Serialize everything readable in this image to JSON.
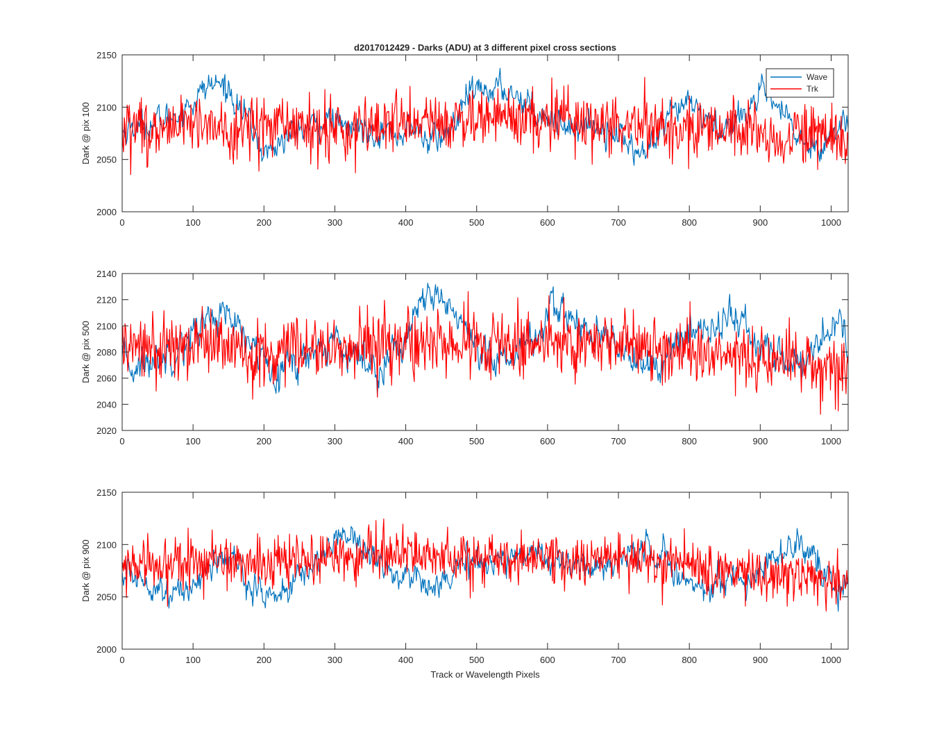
{
  "figure": {
    "title": "d2017012429 - Darks (ADU) at 3 different pixel cross sections",
    "xlabel": "Track or Wavelength Pixels"
  },
  "colors": {
    "wave": "#0072BD",
    "trk": "#FF0000",
    "axes": "#262626",
    "background": "#FFFFFF"
  },
  "chart_data": [
    {
      "type": "line",
      "title": "d2017012429 - Darks (ADU) at 3 different pixel cross sections",
      "xlabel": "",
      "ylabel": "Dark @ pix 100",
      "xlim": [
        0,
        1024
      ],
      "ylim": [
        2000,
        2150
      ],
      "xticks": [
        0,
        100,
        200,
        300,
        400,
        500,
        600,
        700,
        800,
        900,
        1000
      ],
      "yticks": [
        2000,
        2050,
        2100,
        2150
      ],
      "grid": false,
      "legend": "top-right",
      "series": [
        {
          "name": "Wave",
          "color": "#0072BD",
          "trend": [
            [
              0,
              2078
            ],
            [
              20,
              2082
            ],
            [
              50,
              2085
            ],
            [
              80,
              2095
            ],
            [
              100,
              2105
            ],
            [
              120,
              2120
            ],
            [
              135,
              2122
            ],
            [
              150,
              2118
            ],
            [
              165,
              2100
            ],
            [
              180,
              2085
            ],
            [
              200,
              2055
            ],
            [
              220,
              2065
            ],
            [
              250,
              2078
            ],
            [
              270,
              2082
            ],
            [
              290,
              2088
            ],
            [
              310,
              2080
            ],
            [
              330,
              2080
            ],
            [
              360,
              2078
            ],
            [
              390,
              2074
            ],
            [
              410,
              2080
            ],
            [
              430,
              2070
            ],
            [
              450,
              2070
            ],
            [
              470,
              2085
            ],
            [
              490,
              2112
            ],
            [
              520,
              2118
            ],
            [
              550,
              2115
            ],
            [
              570,
              2105
            ],
            [
              600,
              2092
            ],
            [
              630,
              2082
            ],
            [
              660,
              2082
            ],
            [
              690,
              2080
            ],
            [
              710,
              2068
            ],
            [
              730,
              2055
            ],
            [
              745,
              2060
            ],
            [
              760,
              2075
            ],
            [
              780,
              2095
            ],
            [
              800,
              2103
            ],
            [
              820,
              2092
            ],
            [
              840,
              2080
            ],
            [
              860,
              2082
            ],
            [
              880,
              2100
            ],
            [
              900,
              2110
            ],
            [
              920,
              2105
            ],
            [
              940,
              2085
            ],
            [
              960,
              2065
            ],
            [
              980,
              2065
            ],
            [
              1000,
              2070
            ],
            [
              1024,
              2088
            ]
          ],
          "noise": 6
        },
        {
          "name": "Trk",
          "color": "#FF0000",
          "trend": [
            [
              0,
              2080
            ],
            [
              200,
              2082
            ],
            [
              400,
              2082
            ],
            [
              550,
              2090
            ],
            [
              700,
              2082
            ],
            [
              850,
              2078
            ],
            [
              1024,
              2068
            ]
          ],
          "noise": 18
        }
      ]
    },
    {
      "type": "line",
      "title": "",
      "xlabel": "",
      "ylabel": "Dark @ pix 500",
      "xlim": [
        0,
        1024
      ],
      "ylim": [
        2020,
        2140
      ],
      "xticks": [
        0,
        100,
        200,
        300,
        400,
        500,
        600,
        700,
        800,
        900,
        1000
      ],
      "yticks": [
        2020,
        2040,
        2060,
        2080,
        2100,
        2120,
        2140
      ],
      "grid": false,
      "series": [
        {
          "name": "Wave",
          "color": "#0072BD",
          "trend": [
            [
              0,
              2072
            ],
            [
              20,
              2068
            ],
            [
              50,
              2075
            ],
            [
              80,
              2085
            ],
            [
              110,
              2100
            ],
            [
              130,
              2110
            ],
            [
              150,
              2105
            ],
            [
              170,
              2090
            ],
            [
              200,
              2075
            ],
            [
              220,
              2070
            ],
            [
              250,
              2074
            ],
            [
              270,
              2080
            ],
            [
              300,
              2090
            ],
            [
              320,
              2082
            ],
            [
              340,
              2072
            ],
            [
              360,
              2070
            ],
            [
              380,
              2078
            ],
            [
              400,
              2092
            ],
            [
              420,
              2112
            ],
            [
              440,
              2122
            ],
            [
              460,
              2118
            ],
            [
              480,
              2100
            ],
            [
              500,
              2075
            ],
            [
              520,
              2070
            ],
            [
              550,
              2080
            ],
            [
              580,
              2090
            ],
            [
              600,
              2105
            ],
            [
              620,
              2112
            ],
            [
              640,
              2105
            ],
            [
              660,
              2090
            ],
            [
              680,
              2085
            ],
            [
              700,
              2090
            ],
            [
              720,
              2075
            ],
            [
              740,
              2068
            ],
            [
              760,
              2072
            ],
            [
              780,
              2082
            ],
            [
              800,
              2092
            ],
            [
              820,
              2100
            ],
            [
              840,
              2102
            ],
            [
              860,
              2108
            ],
            [
              880,
              2098
            ],
            [
              900,
              2082
            ],
            [
              920,
              2078
            ],
            [
              940,
              2072
            ],
            [
              960,
              2072
            ],
            [
              980,
              2085
            ],
            [
              1000,
              2100
            ],
            [
              1015,
              2100
            ],
            [
              1024,
              2086
            ]
          ],
          "noise": 6
        },
        {
          "name": "Trk",
          "color": "#FF0000",
          "trend": [
            [
              0,
              2082
            ],
            [
              200,
              2082
            ],
            [
              400,
              2086
            ],
            [
              550,
              2086
            ],
            [
              700,
              2088
            ],
            [
              850,
              2078
            ],
            [
              1024,
              2066
            ]
          ],
          "noise": 16
        }
      ]
    },
    {
      "type": "line",
      "title": "",
      "xlabel": "Track or Wavelength Pixels",
      "ylabel": "Dark @ pix 900",
      "xlim": [
        0,
        1024
      ],
      "ylim": [
        2000,
        2150
      ],
      "xticks": [
        0,
        100,
        200,
        300,
        400,
        500,
        600,
        700,
        800,
        900,
        1000
      ],
      "yticks": [
        2000,
        2050,
        2100,
        2150
      ],
      "grid": false,
      "series": [
        {
          "name": "Wave",
          "color": "#0072BD",
          "trend": [
            [
              0,
              2072
            ],
            [
              30,
              2068
            ],
            [
              60,
              2058
            ],
            [
              80,
              2050
            ],
            [
              100,
              2062
            ],
            [
              120,
              2078
            ],
            [
              140,
              2085
            ],
            [
              160,
              2085
            ],
            [
              180,
              2062
            ],
            [
              200,
              2052
            ],
            [
              220,
              2052
            ],
            [
              240,
              2060
            ],
            [
              260,
              2075
            ],
            [
              290,
              2095
            ],
            [
              310,
              2112
            ],
            [
              330,
              2108
            ],
            [
              350,
              2090
            ],
            [
              370,
              2078
            ],
            [
              390,
              2070
            ],
            [
              410,
              2068
            ],
            [
              430,
              2068
            ],
            [
              450,
              2062
            ],
            [
              470,
              2075
            ],
            [
              500,
              2085
            ],
            [
              530,
              2085
            ],
            [
              560,
              2088
            ],
            [
              580,
              2098
            ],
            [
              600,
              2088
            ],
            [
              630,
              2080
            ],
            [
              660,
              2078
            ],
            [
              690,
              2082
            ],
            [
              710,
              2088
            ],
            [
              730,
              2092
            ],
            [
              750,
              2098
            ],
            [
              770,
              2085
            ],
            [
              790,
              2065
            ],
            [
              810,
              2060
            ],
            [
              830,
              2062
            ],
            [
              860,
              2068
            ],
            [
              890,
              2068
            ],
            [
              910,
              2085
            ],
            [
              940,
              2098
            ],
            [
              955,
              2100
            ],
            [
              970,
              2085
            ],
            [
              990,
              2070
            ],
            [
              1010,
              2058
            ],
            [
              1024,
              2055
            ]
          ],
          "noise": 6
        },
        {
          "name": "Trk",
          "color": "#FF0000",
          "trend": [
            [
              0,
              2082
            ],
            [
              200,
              2082
            ],
            [
              350,
              2092
            ],
            [
              500,
              2088
            ],
            [
              700,
              2085
            ],
            [
              850,
              2075
            ],
            [
              1024,
              2065
            ]
          ],
          "noise": 16
        }
      ]
    }
  ]
}
